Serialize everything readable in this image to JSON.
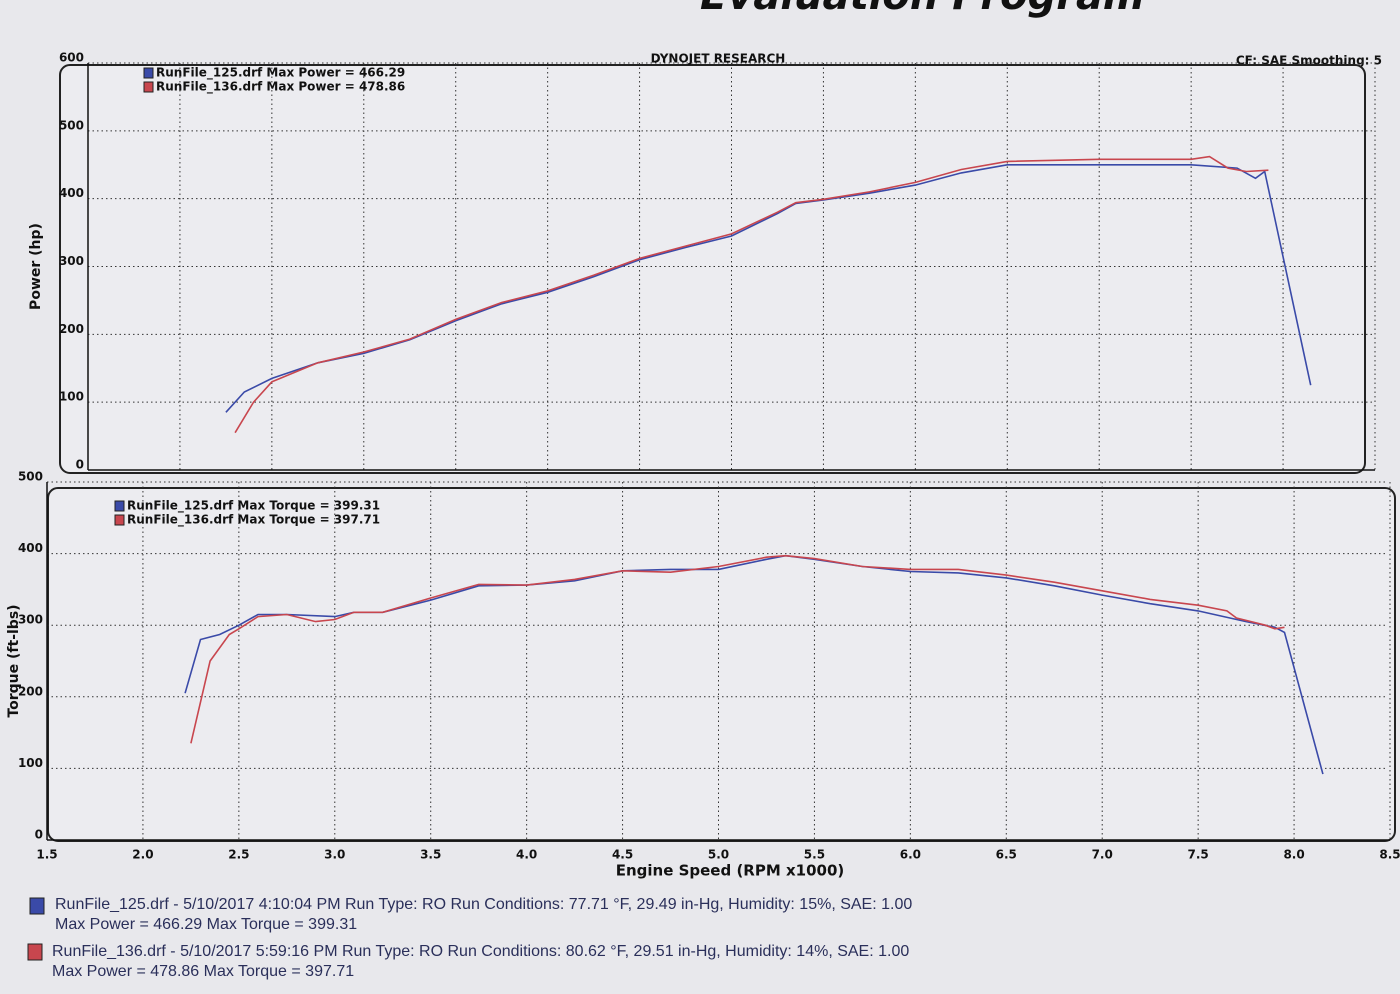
{
  "header": {
    "title": "Evaluation Program",
    "settings": "CF: SAE  Smoothing: 5"
  },
  "chart_data": [
    {
      "type": "line",
      "title": "DYNOJET RESEARCH",
      "y_label": "Power (hp)",
      "legend": "upper left",
      "grid": true,
      "xlim": [
        1.5,
        8.5
      ],
      "xticks": [
        1.5,
        2,
        2.5,
        3,
        3.5,
        4,
        4.5,
        5,
        5.5,
        6,
        6.5,
        7,
        7.5,
        8,
        8.5
      ],
      "ylim": [
        0,
        600
      ],
      "yticks": [
        0,
        100,
        200,
        300,
        400,
        500,
        600
      ],
      "series": [
        {
          "name": "RunFile_125.drf Max Power = 466.29",
          "color": "#3a4aa8",
          "x": [
            2.25,
            2.35,
            2.5,
            2.75,
            3.0,
            3.25,
            3.5,
            3.75,
            4.0,
            4.25,
            4.5,
            4.75,
            5.0,
            5.25,
            5.35,
            5.5,
            5.75,
            6.0,
            6.25,
            6.5,
            7.0,
            7.5,
            7.75,
            7.85,
            7.9,
            8.15
          ],
          "values": [
            85,
            115,
            135,
            158,
            172,
            192,
            220,
            245,
            262,
            285,
            310,
            328,
            345,
            378,
            393,
            398,
            408,
            420,
            438,
            450,
            450,
            450,
            445,
            430,
            440,
            125
          ]
        },
        {
          "name": "RunFile_136.drf Max Power = 478.86",
          "color": "#c8464e",
          "x": [
            2.3,
            2.4,
            2.5,
            2.75,
            3.0,
            3.25,
            3.5,
            3.75,
            4.0,
            4.25,
            4.5,
            4.75,
            5.0,
            5.25,
            5.35,
            5.5,
            5.75,
            6.0,
            6.25,
            6.5,
            7.0,
            7.5,
            7.6,
            7.7,
            7.8,
            7.92
          ],
          "values": [
            55,
            100,
            130,
            158,
            174,
            193,
            222,
            247,
            264,
            287,
            312,
            330,
            348,
            380,
            394,
            399,
            410,
            424,
            443,
            455,
            458,
            458,
            462,
            445,
            440,
            442
          ]
        }
      ]
    },
    {
      "type": "line",
      "x_label": "Engine Speed (RPM x1000)",
      "y_label": "Torque (ft-lbs)",
      "legend": "upper left",
      "grid": true,
      "xlim": [
        1.5,
        8.5
      ],
      "xticks": [
        1.5,
        {
          "value": 2,
          "label": "2.0"
        },
        2.5,
        {
          "value": 3,
          "label": "3.0"
        },
        3.5,
        {
          "value": 4,
          "label": "4.0"
        },
        4.5,
        {
          "value": 5,
          "label": "5.0"
        },
        5.5,
        {
          "value": 6,
          "label": "6.0"
        },
        6.5,
        {
          "value": 7,
          "label": "7.0"
        },
        7.5,
        {
          "value": 8,
          "label": "8.0"
        },
        8.5
      ],
      "ylim": [
        0,
        500
      ],
      "yticks": [
        0,
        100,
        200,
        300,
        400,
        500
      ],
      "series": [
        {
          "name": "RunFile_125.drf Max Torque = 399.31",
          "color": "#3a4aa8",
          "x": [
            2.22,
            2.3,
            2.4,
            2.5,
            2.6,
            2.75,
            3.0,
            3.1,
            3.25,
            3.5,
            3.75,
            4.0,
            4.25,
            4.5,
            4.75,
            5.0,
            5.25,
            5.35,
            5.5,
            5.75,
            6.0,
            6.25,
            6.5,
            6.75,
            7.0,
            7.25,
            7.5,
            7.75,
            7.9,
            7.95,
            8.15
          ],
          "values": [
            205,
            280,
            287,
            300,
            315,
            315,
            312,
            318,
            318,
            335,
            355,
            356,
            362,
            376,
            378,
            378,
            392,
            397,
            392,
            382,
            375,
            373,
            366,
            355,
            342,
            330,
            320,
            305,
            297,
            290,
            92
          ]
        },
        {
          "name": "RunFile_136.drf Max Torque = 397.71",
          "color": "#c8464e",
          "x": [
            2.25,
            2.35,
            2.45,
            2.5,
            2.6,
            2.75,
            2.9,
            3.0,
            3.1,
            3.25,
            3.5,
            3.75,
            4.0,
            4.25,
            4.5,
            4.75,
            5.0,
            5.25,
            5.35,
            5.5,
            5.75,
            6.0,
            6.25,
            6.5,
            6.75,
            7.0,
            7.25,
            7.5,
            7.65,
            7.7,
            7.85,
            7.9,
            7.95
          ],
          "values": [
            135,
            250,
            287,
            295,
            312,
            315,
            305,
            308,
            318,
            318,
            338,
            357,
            356,
            364,
            376,
            374,
            382,
            395,
            397,
            393,
            382,
            378,
            378,
            370,
            360,
            348,
            336,
            328,
            320,
            310,
            300,
            295,
            297
          ]
        }
      ]
    }
  ],
  "footer": {
    "runs": [
      {
        "line1": "RunFile_125.drf - 5/10/2017 4:10:04 PM  Run Type: RO  Run Conditions: 77.71 °F, 29.49 in-Hg,  Humidity:  15%, SAE: 1.00",
        "line2": "Max Power = 466.29  Max Torque = 399.31"
      },
      {
        "line1": "RunFile_136.drf - 5/10/2017 5:59:16 PM  Run Type: RO  Run Conditions: 80.62 °F, 29.51 in-Hg,  Humidity:  14%, SAE: 1.00",
        "line2": "Max Power = 478.86  Max Torque = 397.71"
      }
    ]
  }
}
